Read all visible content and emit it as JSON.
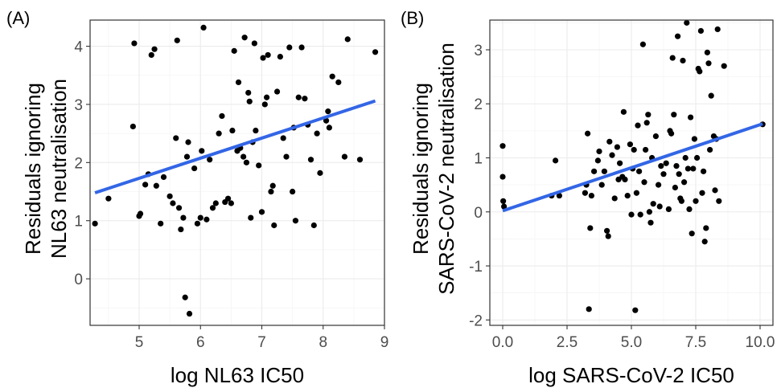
{
  "chart_data": [
    {
      "type": "scatter",
      "panel_label": "(A)",
      "xlabel": "log NL63 IC50",
      "ylabel": "Residuals ignoring\nNL63 neutralisation",
      "xlim": [
        4.2,
        9.0
      ],
      "ylim": [
        -0.8,
        4.45
      ],
      "xticks": [
        5,
        6,
        7,
        8,
        9
      ],
      "yticks": [
        0,
        1,
        2,
        3,
        4
      ],
      "grid": true,
      "points": [
        [
          4.28,
          0.95
        ],
        [
          4.5,
          1.38
        ],
        [
          4.9,
          2.62
        ],
        [
          4.92,
          4.05
        ],
        [
          5.0,
          1.08
        ],
        [
          5.02,
          1.12
        ],
        [
          5.1,
          1.62
        ],
        [
          5.15,
          1.8
        ],
        [
          5.2,
          3.85
        ],
        [
          5.25,
          3.95
        ],
        [
          5.28,
          1.6
        ],
        [
          5.35,
          0.95
        ],
        [
          5.4,
          1.75
        ],
        [
          5.5,
          1.42
        ],
        [
          5.55,
          1.3
        ],
        [
          5.6,
          2.42
        ],
        [
          5.62,
          4.1
        ],
        [
          5.65,
          1.22
        ],
        [
          5.68,
          0.85
        ],
        [
          5.72,
          1.05
        ],
        [
          5.75,
          -0.32
        ],
        [
          5.78,
          2.1
        ],
        [
          5.8,
          2.35
        ],
        [
          5.82,
          -0.6
        ],
        [
          5.9,
          1.9
        ],
        [
          5.95,
          0.95
        ],
        [
          6.0,
          1.05
        ],
        [
          6.02,
          2.2
        ],
        [
          6.05,
          4.32
        ],
        [
          6.1,
          1.02
        ],
        [
          6.15,
          2.05
        ],
        [
          6.2,
          1.22
        ],
        [
          6.25,
          1.3
        ],
        [
          6.3,
          2.5
        ],
        [
          6.35,
          2.8
        ],
        [
          6.4,
          1.32
        ],
        [
          6.45,
          1.38
        ],
        [
          6.5,
          1.3
        ],
        [
          6.52,
          2.55
        ],
        [
          6.55,
          3.92
        ],
        [
          6.6,
          2.2
        ],
        [
          6.62,
          3.38
        ],
        [
          6.65,
          2.25
        ],
        [
          6.7,
          2.1
        ],
        [
          6.72,
          4.15
        ],
        [
          6.75,
          2.0
        ],
        [
          6.78,
          3.2
        ],
        [
          6.8,
          3.05
        ],
        [
          6.82,
          1.05
        ],
        [
          6.85,
          2.35
        ],
        [
          6.88,
          4.05
        ],
        [
          6.9,
          2.55
        ],
        [
          6.95,
          1.95
        ],
        [
          7.0,
          1.15
        ],
        [
          7.02,
          3.8
        ],
        [
          7.05,
          3.0
        ],
        [
          7.08,
          3.12
        ],
        [
          7.1,
          3.85
        ],
        [
          7.15,
          1.5
        ],
        [
          7.18,
          1.6
        ],
        [
          7.2,
          0.92
        ],
        [
          7.25,
          3.22
        ],
        [
          7.3,
          3.82
        ],
        [
          7.35,
          2.42
        ],
        [
          7.4,
          2.1
        ],
        [
          7.45,
          3.98
        ],
        [
          7.5,
          1.5
        ],
        [
          7.52,
          2.6
        ],
        [
          7.55,
          1.0
        ],
        [
          7.6,
          3.12
        ],
        [
          7.65,
          3.98
        ],
        [
          7.7,
          3.1
        ],
        [
          7.75,
          2.65
        ],
        [
          7.8,
          2.05
        ],
        [
          7.85,
          0.92
        ],
        [
          7.9,
          2.5
        ],
        [
          7.95,
          1.82
        ],
        [
          8.05,
          2.72
        ],
        [
          8.08,
          2.88
        ],
        [
          8.1,
          2.6
        ],
        [
          8.15,
          3.48
        ],
        [
          8.25,
          3.38
        ],
        [
          8.35,
          2.1
        ],
        [
          8.4,
          4.12
        ],
        [
          8.6,
          2.05
        ],
        [
          8.85,
          3.9
        ]
      ],
      "fit_line": {
        "x": [
          4.28,
          8.85
        ],
        "y": [
          1.48,
          3.06
        ],
        "color": "#3366e6"
      },
      "point_color": "#000000"
    },
    {
      "type": "scatter",
      "panel_label": "(B)",
      "xlabel": "log SARS-CoV-2 IC50",
      "ylabel": "Residuals ignoring\nSARS-CoV-2 neutralisation",
      "xlim": [
        -0.5,
        10.5
      ],
      "ylim": [
        -2.1,
        3.55
      ],
      "xticks": [
        0.0,
        2.5,
        5.0,
        7.5,
        10.0
      ],
      "xtick_labels": [
        "0.0",
        "2.5",
        "5.0",
        "7.5",
        "10.0"
      ],
      "yticks": [
        -2,
        -1,
        0,
        1,
        2,
        3
      ],
      "grid": true,
      "points": [
        [
          0.0,
          1.22
        ],
        [
          0.0,
          0.65
        ],
        [
          0.02,
          0.2
        ],
        [
          0.05,
          0.1
        ],
        [
          1.9,
          0.3
        ],
        [
          2.05,
          0.95
        ],
        [
          2.2,
          0.3
        ],
        [
          3.2,
          0.35
        ],
        [
          3.25,
          0.5
        ],
        [
          3.3,
          1.45
        ],
        [
          3.35,
          -1.8
        ],
        [
          3.4,
          -0.3
        ],
        [
          3.45,
          0.3
        ],
        [
          3.55,
          0.75
        ],
        [
          3.7,
          0.95
        ],
        [
          3.75,
          1.12
        ],
        [
          3.85,
          0.5
        ],
        [
          3.95,
          0.75
        ],
        [
          4.05,
          -0.35
        ],
        [
          4.1,
          -0.45
        ],
        [
          4.15,
          1.3
        ],
        [
          4.25,
          1.05
        ],
        [
          4.35,
          0.25
        ],
        [
          4.45,
          1.2
        ],
        [
          4.5,
          0.6
        ],
        [
          4.55,
          0.9
        ],
        [
          4.65,
          0.65
        ],
        [
          4.7,
          1.85
        ],
        [
          4.75,
          0.6
        ],
        [
          4.85,
          0.3
        ],
        [
          4.95,
          1.25
        ],
        [
          5.0,
          -0.05
        ],
        [
          5.05,
          0.8
        ],
        [
          5.1,
          1.15
        ],
        [
          5.15,
          -1.82
        ],
        [
          5.2,
          0.35
        ],
        [
          5.25,
          1.6
        ],
        [
          5.3,
          0.75
        ],
        [
          5.35,
          -0.05
        ],
        [
          5.45,
          3.1
        ],
        [
          5.5,
          0.55
        ],
        [
          5.55,
          1.15
        ],
        [
          5.6,
          1.65
        ],
        [
          5.65,
          1.8
        ],
        [
          5.7,
          0.0
        ],
        [
          5.75,
          -0.2
        ],
        [
          5.8,
          1.0
        ],
        [
          5.85,
          0.15
        ],
        [
          5.95,
          1.4
        ],
        [
          6.05,
          0.5
        ],
        [
          6.1,
          0.1
        ],
        [
          6.15,
          0.85
        ],
        [
          6.25,
          0.7
        ],
        [
          6.35,
          0.9
        ],
        [
          6.45,
          0.05
        ],
        [
          6.5,
          1.5
        ],
        [
          6.55,
          1.45
        ],
        [
          6.6,
          2.85
        ],
        [
          6.65,
          1.8
        ],
        [
          6.7,
          0.45
        ],
        [
          6.75,
          0.85
        ],
        [
          6.8,
          3.25
        ],
        [
          6.85,
          0.7
        ],
        [
          6.9,
          0.25
        ],
        [
          6.95,
          0.2
        ],
        [
          7.0,
          2.8
        ],
        [
          7.05,
          0.55
        ],
        [
          7.1,
          1.0
        ],
        [
          7.15,
          3.5
        ],
        [
          7.2,
          0.8
        ],
        [
          7.25,
          0.05
        ],
        [
          7.3,
          1.75
        ],
        [
          7.35,
          -0.4
        ],
        [
          7.4,
          0.8
        ],
        [
          7.45,
          1.35
        ],
        [
          7.5,
          0.2
        ],
        [
          7.55,
          1.0
        ],
        [
          7.6,
          2.65
        ],
        [
          7.65,
          2.6
        ],
        [
          7.7,
          3.35
        ],
        [
          7.75,
          0.35
        ],
        [
          7.8,
          0.75
        ],
        [
          7.85,
          -0.55
        ],
        [
          7.9,
          -0.3
        ],
        [
          7.95,
          2.95
        ],
        [
          8.0,
          2.75
        ],
        [
          8.05,
          1.15
        ],
        [
          8.1,
          2.15
        ],
        [
          8.2,
          1.4
        ],
        [
          8.25,
          0.4
        ],
        [
          8.3,
          1.35
        ],
        [
          8.35,
          3.38
        ],
        [
          8.4,
          0.2
        ],
        [
          8.6,
          2.7
        ],
        [
          10.1,
          1.62
        ]
      ],
      "fit_line": {
        "x": [
          0.0,
          10.1
        ],
        "y": [
          0.02,
          1.63
        ],
        "color": "#3366e6"
      },
      "point_color": "#000000"
    }
  ]
}
